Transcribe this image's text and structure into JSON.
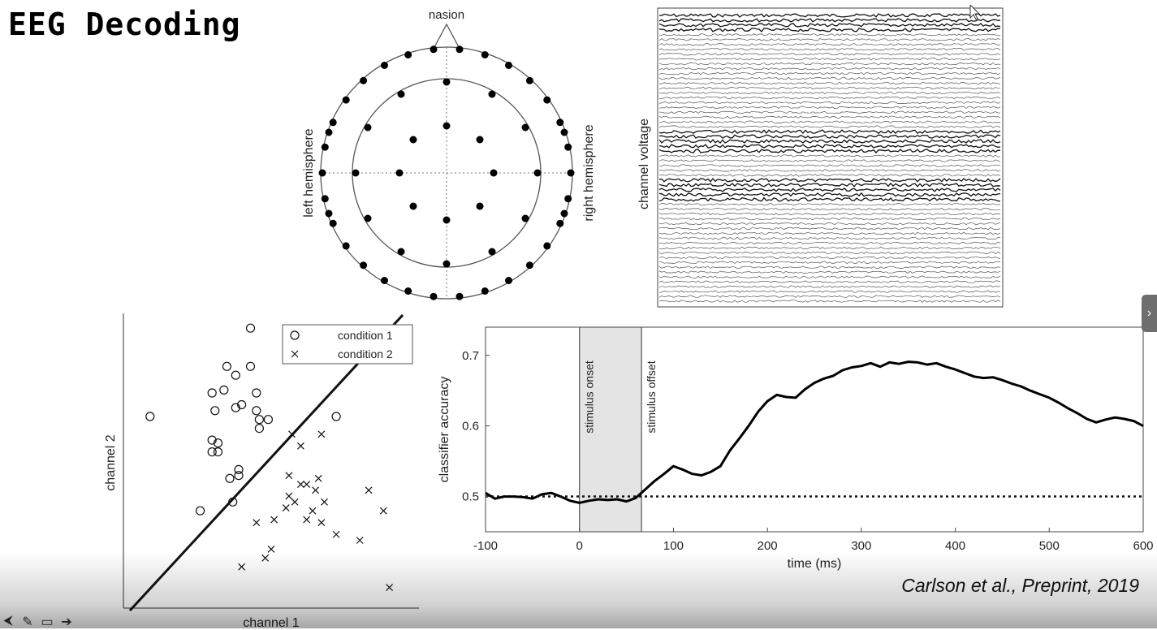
{
  "slide": {
    "title": "EEG Decoding",
    "citation": "Carlson et al., Preprint, 2019"
  },
  "head_map": {
    "top_label": "nasion",
    "left_label": "left hemisphere",
    "right_label": "right hemisphere"
  },
  "eeg_traces": {
    "ylabel": "channel voltage",
    "channel_count": 60
  },
  "scatter": {
    "xlabel": "channel 1",
    "ylabel": "channel 2",
    "legend": [
      {
        "marker": "o",
        "label": "condition 1"
      },
      {
        "marker": "x",
        "label": "condition 2"
      }
    ]
  },
  "chart_data": [
    {
      "type": "scatter",
      "title": "",
      "xlabel": "channel 1",
      "ylabel": "channel 2",
      "xlim": [
        0,
        10
      ],
      "ylim": [
        0,
        10
      ],
      "legend_position": "top-right",
      "series": [
        {
          "name": "condition 1",
          "marker": "o",
          "points": [
            [
              4.3,
              9.5
            ],
            [
              0.9,
              6.5
            ],
            [
              3.5,
              8.2
            ],
            [
              4.3,
              8.2
            ],
            [
              3.8,
              7.9
            ],
            [
              3.0,
              7.3
            ],
            [
              3.4,
              7.4
            ],
            [
              4.5,
              7.3
            ],
            [
              3.1,
              6.7
            ],
            [
              3.8,
              6.8
            ],
            [
              4.0,
              6.9
            ],
            [
              4.5,
              6.7
            ],
            [
              4.6,
              6.4
            ],
            [
              4.9,
              6.4
            ],
            [
              4.6,
              6.1
            ],
            [
              7.2,
              6.5
            ],
            [
              3.0,
              5.7
            ],
            [
              3.2,
              5.6
            ],
            [
              3.0,
              5.3
            ],
            [
              3.2,
              5.3
            ],
            [
              3.9,
              4.7
            ],
            [
              3.9,
              4.5
            ],
            [
              3.6,
              4.4
            ],
            [
              3.7,
              3.6
            ],
            [
              2.6,
              3.3
            ]
          ],
          "count": 25
        },
        {
          "name": "condition 2",
          "marker": "x",
          "points": [
            [
              5.7,
              5.9
            ],
            [
              6.7,
              5.9
            ],
            [
              6.0,
              5.5
            ],
            [
              5.6,
              4.5
            ],
            [
              6.6,
              4.4
            ],
            [
              6.0,
              4.2
            ],
            [
              6.2,
              4.2
            ],
            [
              6.5,
              4.0
            ],
            [
              5.6,
              3.8
            ],
            [
              5.8,
              3.6
            ],
            [
              6.8,
              3.6
            ],
            [
              5.5,
              3.4
            ],
            [
              6.4,
              3.3
            ],
            [
              8.3,
              4.0
            ],
            [
              8.8,
              3.3
            ],
            [
              5.1,
              3.0
            ],
            [
              6.2,
              3.0
            ],
            [
              6.7,
              2.9
            ],
            [
              4.5,
              2.9
            ],
            [
              7.2,
              2.5
            ],
            [
              8.0,
              2.3
            ],
            [
              5.0,
              2.0
            ],
            [
              4.8,
              1.7
            ],
            [
              4.0,
              1.4
            ],
            [
              9.0,
              0.7
            ]
          ],
          "count": 25
        }
      ],
      "decision_boundary": "diagonal line separating the two conditions"
    },
    {
      "type": "line",
      "title": "",
      "xlabel": "time (ms)",
      "ylabel": "classifier accuracy",
      "xlim": [
        -100,
        600
      ],
      "ylim": [
        0.45,
        0.74
      ],
      "xticks": [
        -100,
        0,
        100,
        200,
        300,
        400,
        500,
        600
      ],
      "yticks": [
        0.5,
        0.6,
        0.7
      ],
      "chance_level": 0.5,
      "stimulus_window": [
        0,
        66
      ],
      "annotations": [
        "stimulus onset",
        "stimulus offset"
      ],
      "series": [
        {
          "x": [
            -100,
            -90,
            -80,
            -70,
            -60,
            -50,
            -40,
            -30,
            -20,
            -10,
            0,
            10,
            20,
            30,
            40,
            50,
            60,
            70,
            80,
            90,
            100,
            110,
            120,
            130,
            140,
            150,
            160,
            170,
            180,
            190,
            200,
            210,
            220,
            230,
            240,
            250,
            260,
            270,
            280,
            290,
            300,
            310,
            320,
            330,
            340,
            350,
            360,
            370,
            380,
            390,
            400,
            410,
            420,
            430,
            440,
            450,
            460,
            470,
            480,
            490,
            500,
            510,
            520,
            530,
            540,
            550,
            560,
            570,
            580,
            590,
            600
          ],
          "y": [
            0.505,
            0.497,
            0.5,
            0.5,
            0.499,
            0.497,
            0.503,
            0.505,
            0.5,
            0.494,
            0.491,
            0.494,
            0.496,
            0.495,
            0.496,
            0.493,
            0.498,
            0.51,
            0.522,
            0.532,
            0.543,
            0.538,
            0.532,
            0.53,
            0.535,
            0.543,
            0.565,
            0.582,
            0.6,
            0.62,
            0.635,
            0.644,
            0.641,
            0.64,
            0.652,
            0.661,
            0.667,
            0.671,
            0.679,
            0.683,
            0.685,
            0.689,
            0.684,
            0.69,
            0.688,
            0.691,
            0.69,
            0.687,
            0.689,
            0.684,
            0.68,
            0.675,
            0.67,
            0.668,
            0.669,
            0.665,
            0.66,
            0.656,
            0.65,
            0.645,
            0.64,
            0.633,
            0.625,
            0.618,
            0.61,
            0.605,
            0.609,
            0.612,
            0.61,
            0.607,
            0.6
          ]
        }
      ]
    }
  ]
}
